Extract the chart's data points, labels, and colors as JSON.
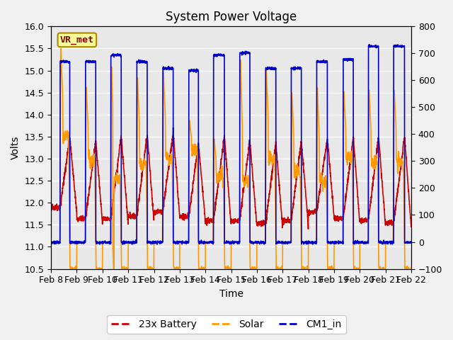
{
  "title": "System Power Voltage",
  "xlabel": "Time",
  "ylabel": "Volts",
  "ylim_left": [
    10.5,
    16.0
  ],
  "ylim_right": [
    -100,
    800
  ],
  "yticks_left": [
    10.5,
    11.0,
    11.5,
    12.0,
    12.5,
    13.0,
    13.5,
    14.0,
    14.5,
    15.0,
    15.5,
    16.0
  ],
  "yticks_right": [
    -100,
    0,
    100,
    200,
    300,
    400,
    500,
    600,
    700,
    800
  ],
  "xtick_labels": [
    "Feb 8",
    "Feb 9",
    "Feb 10",
    "Feb 11",
    "Feb 12",
    "Feb 13",
    "Feb 14",
    "Feb 15",
    "Feb 16",
    "Feb 17",
    "Feb 18",
    "Feb 19",
    "Feb 20",
    "Feb 21",
    "Feb 22"
  ],
  "legend_labels": [
    "23x Battery",
    "Solar",
    "CM1_in"
  ],
  "line_colors": [
    "#cc0000",
    "#ff9900",
    "#0000cc"
  ],
  "vr_met_label": "VR_met",
  "vr_met_text_color": "#880000",
  "vr_met_box_facecolor": "#ffff99",
  "vr_met_box_edgecolor": "#aa8800",
  "plot_bg_color": "#e8e8e8",
  "fig_bg_color": "#f0f0f0",
  "grid_color": "#ffffff",
  "title_fontsize": 12,
  "label_fontsize": 10,
  "tick_fontsize": 9,
  "legend_fontsize": 10,
  "line_width": 1.2,
  "day_on_hours": [
    8.5,
    8.2,
    7.8,
    8.0,
    8.3,
    8.5,
    7.5,
    8.0,
    8.2,
    8.0,
    7.8,
    8.5,
    8.0,
    7.5
  ],
  "day_off_hours": [
    17.5,
    17.8,
    17.5,
    17.8,
    18.0,
    17.5,
    17.8,
    17.5,
    17.8,
    17.5,
    17.8,
    18.0,
    17.5,
    17.8
  ],
  "cm1_day_level": [
    15.2,
    15.2,
    15.35,
    15.2,
    15.05,
    15.0,
    15.35,
    15.4,
    15.05,
    15.05,
    15.2,
    15.25,
    15.55,
    15.55
  ],
  "solar_peak": [
    15.6,
    14.7,
    15.2,
    14.95,
    15.05,
    13.9,
    13.5,
    15.4,
    15.1,
    14.6,
    14.7,
    14.6,
    14.65,
    14.65
  ],
  "solar_mid": [
    13.5,
    13.0,
    12.5,
    12.9,
    13.0,
    13.2,
    12.6,
    12.5,
    13.0,
    12.7,
    12.5,
    13.0,
    12.9,
    12.9
  ],
  "batt_start": [
    11.9,
    11.65,
    11.65,
    11.7,
    11.8,
    11.7,
    11.6,
    11.6,
    11.55,
    11.6,
    11.8,
    11.65,
    11.6,
    11.55
  ],
  "batt_peak": [
    13.5,
    13.4,
    13.5,
    13.55,
    13.6,
    13.35,
    13.5,
    13.4,
    13.35,
    13.4,
    13.45,
    13.5,
    13.5,
    13.5
  ]
}
